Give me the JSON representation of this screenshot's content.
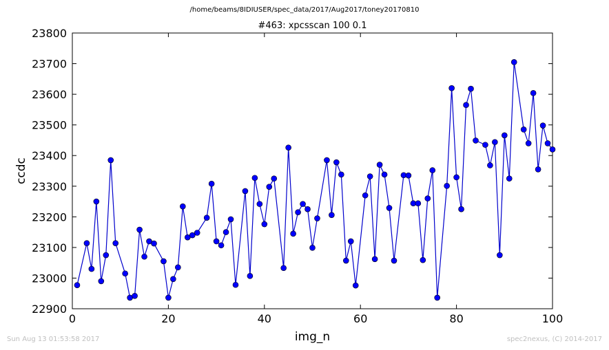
{
  "header": {
    "supertitle": "/home/beams/8IDIUSER/spec_data/2017/Aug2017/toney20170810"
  },
  "footer": {
    "timestamp": "Sun Aug 13 01:53:58 2017",
    "credit": "spec2nexus, (C) 2014-2017"
  },
  "chart_data": {
    "type": "line",
    "title": "#463: xpcsscan 100 0.1",
    "xlabel": "img_n",
    "ylabel": "ccdc",
    "xlim": [
      0,
      100
    ],
    "ylim": [
      22900,
      23800
    ],
    "xticks": [
      0,
      20,
      40,
      60,
      80,
      100
    ],
    "yticks": [
      22900,
      23000,
      23100,
      23200,
      23300,
      23400,
      23500,
      23600,
      23700,
      23800
    ],
    "grid": false,
    "colors": {
      "series": "#0000cc",
      "marker_fill": "#0000ff"
    },
    "series": [
      {
        "marker": "circle",
        "x": [
          1,
          3,
          4,
          5,
          6,
          7,
          8,
          9,
          11,
          12,
          13,
          14,
          15,
          16,
          17,
          19,
          20,
          21,
          22,
          23,
          24,
          25,
          26,
          28,
          29,
          30,
          31,
          32,
          33,
          34,
          36,
          37,
          38,
          39,
          40,
          41,
          42,
          44,
          45,
          46,
          47,
          48,
          49,
          50,
          51,
          53,
          54,
          55,
          56,
          57,
          58,
          59,
          61,
          62,
          63,
          64,
          65,
          66,
          67,
          69,
          70,
          71,
          72,
          73,
          74,
          75,
          76,
          78,
          79,
          80,
          81,
          82,
          83,
          84,
          86,
          87,
          88,
          89,
          90,
          91,
          92,
          94,
          95,
          96,
          97,
          98,
          99,
          100
        ],
        "y": [
          22977,
          23114,
          23030,
          23250,
          22990,
          23075,
          23385,
          23114,
          23015,
          22936,
          22942,
          23158,
          23070,
          23120,
          23113,
          23055,
          22936,
          22997,
          23035,
          23234,
          23133,
          23140,
          23148,
          23197,
          23308,
          23120,
          23107,
          23150,
          23192,
          22978,
          23284,
          23007,
          23327,
          23242,
          23176,
          23298,
          23325,
          23033,
          23426,
          23145,
          23215,
          23242,
          23225,
          23099,
          23195,
          23385,
          23206,
          23378,
          23338,
          23057,
          23120,
          22976,
          23270,
          23332,
          23062,
          23370,
          23338,
          23229,
          23057,
          23336,
          23335,
          23244,
          23244,
          23059,
          23260,
          23352,
          22936,
          23301,
          23620,
          23329,
          23225,
          23565,
          23618,
          23449,
          23435,
          23368,
          23444,
          23075,
          23466,
          23325,
          23705,
          23485,
          23440,
          23604,
          23355,
          23498,
          23440,
          23420
        ]
      }
    ]
  }
}
